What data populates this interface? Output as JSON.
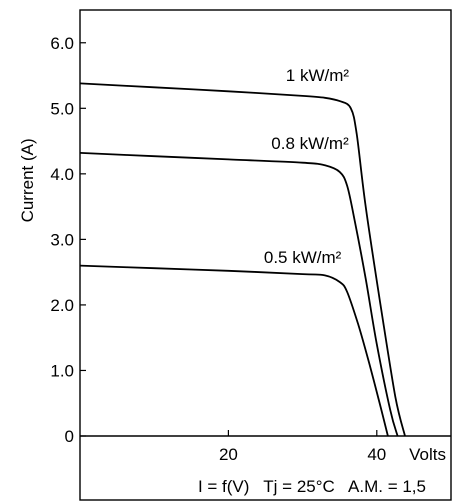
{
  "chart_data": {
    "type": "line",
    "ylabel": "Current (A)",
    "xlabel": "Volts",
    "caption": "I = f(V)   Tj = 25°C   A.M. = 1,5",
    "xlim": [
      0,
      50
    ],
    "ylim": [
      0,
      6.5
    ],
    "x_ticks": [
      {
        "value": 20,
        "label": "20"
      },
      {
        "value": 40,
        "label": "40"
      }
    ],
    "y_ticks": [
      {
        "value": 0,
        "label": "0"
      },
      {
        "value": 1,
        "label": "1.0"
      },
      {
        "value": 2,
        "label": "2.0"
      },
      {
        "value": 3,
        "label": "3.0"
      },
      {
        "value": 4,
        "label": "4.0"
      },
      {
        "value": 5,
        "label": "5.0"
      },
      {
        "value": 6,
        "label": "6.0"
      }
    ],
    "series": [
      {
        "name": "1 kW/m²",
        "label_at": [
          32,
          5.42
        ],
        "points": [
          [
            0,
            5.38
          ],
          [
            10,
            5.32
          ],
          [
            20,
            5.26
          ],
          [
            30,
            5.19
          ],
          [
            33,
            5.16
          ],
          [
            35,
            5.11
          ],
          [
            36.5,
            5.0
          ],
          [
            37.3,
            4.6
          ],
          [
            38.5,
            3.5
          ],
          [
            40.5,
            2.0
          ],
          [
            42.5,
            0.6
          ],
          [
            43.8,
            0
          ]
        ]
      },
      {
        "name": "0.8 kW/m²",
        "label_at": [
          31,
          4.38
        ],
        "points": [
          [
            0,
            4.32
          ],
          [
            10,
            4.27
          ],
          [
            20,
            4.22
          ],
          [
            30,
            4.17
          ],
          [
            33,
            4.13
          ],
          [
            35,
            4.03
          ],
          [
            36,
            3.82
          ],
          [
            37,
            3.3
          ],
          [
            38.5,
            2.4
          ],
          [
            40,
            1.4
          ],
          [
            41.8,
            0.4
          ],
          [
            42.8,
            0
          ]
        ]
      },
      {
        "name": "0.5 kW/m²",
        "label_at": [
          30,
          2.64
        ],
        "points": [
          [
            0,
            2.6
          ],
          [
            10,
            2.56
          ],
          [
            20,
            2.52
          ],
          [
            30,
            2.47
          ],
          [
            33,
            2.45
          ],
          [
            35,
            2.35
          ],
          [
            36,
            2.2
          ],
          [
            37.5,
            1.7
          ],
          [
            39,
            1.1
          ],
          [
            40.5,
            0.45
          ],
          [
            41.5,
            0
          ]
        ]
      }
    ]
  }
}
